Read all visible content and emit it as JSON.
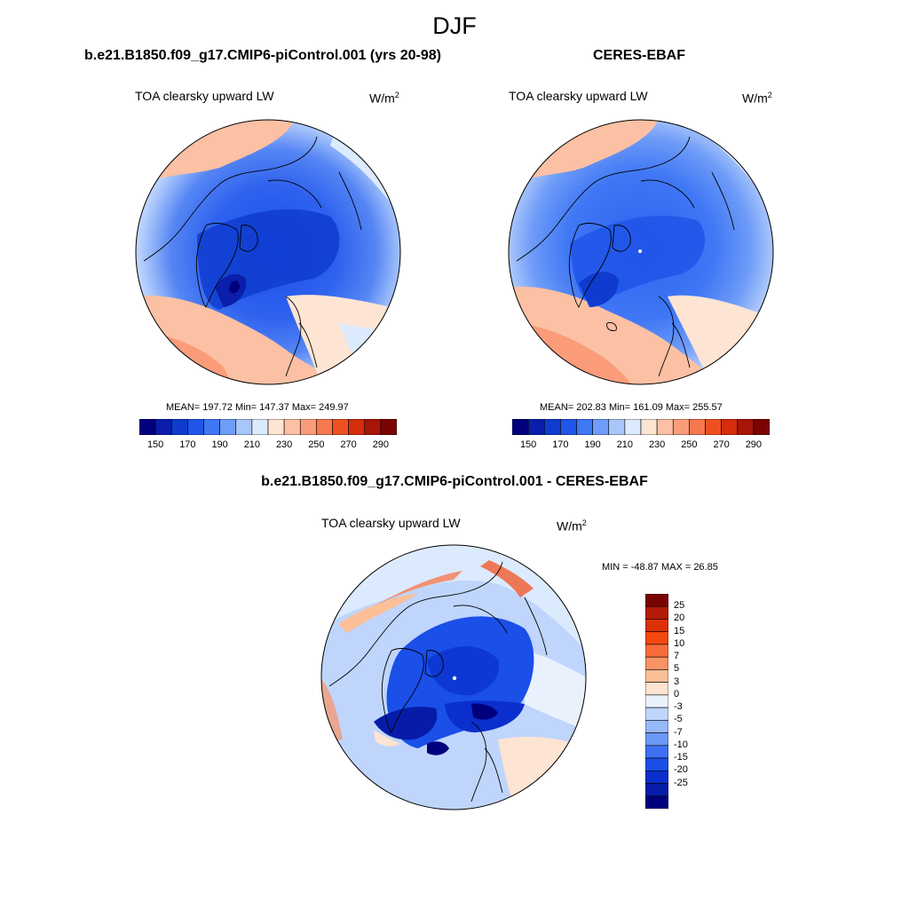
{
  "figure": {
    "title": "DJF"
  },
  "panels": [
    {
      "id": "model",
      "case_title": "b.e21.B1850.f09_g17.CMIP6-piControl.001 (yrs 20-98)",
      "variable": "TOA clearsky upward LW",
      "units_base": "W/m",
      "units_exp": "2",
      "stats": "MEAN= 197.72  Min= 147.37  Max= 249.97",
      "colorbar": {
        "colors": [
          "#00007d",
          "#0a1eaa",
          "#0f3ccf",
          "#1f55e8",
          "#3f77f5",
          "#6f9cf8",
          "#a9c6fb",
          "#dceafd",
          "#fde4d3",
          "#fcc0a4",
          "#fa9c79",
          "#f6784e",
          "#ef5021",
          "#d52d0d",
          "#a81509",
          "#7a0403"
        ],
        "tick_labels": [
          "150",
          "170",
          "190",
          "210",
          "230",
          "250",
          "270",
          "290"
        ]
      }
    },
    {
      "id": "obs",
      "case_title": "CERES-EBAF",
      "variable": "TOA clearsky upward LW",
      "units_base": "W/m",
      "units_exp": "2",
      "stats": "MEAN= 202.83  Min= 161.09  Max= 255.57",
      "colorbar": {
        "colors": [
          "#00007d",
          "#0a1eaa",
          "#0f3ccf",
          "#1f55e8",
          "#3f77f5",
          "#6f9cf8",
          "#a9c6fb",
          "#dceafd",
          "#fde4d3",
          "#fcc0a4",
          "#fa9c79",
          "#f6784e",
          "#ef5021",
          "#d52d0d",
          "#a81509",
          "#7a0403"
        ],
        "tick_labels": [
          "150",
          "170",
          "190",
          "210",
          "230",
          "250",
          "270",
          "290"
        ]
      }
    },
    {
      "id": "diff",
      "case_title": "b.e21.B1850.f09_g17.CMIP6-piControl.001 - CERES-EBAF",
      "variable": "TOA clearsky upward LW",
      "units_base": "W/m",
      "units_exp": "2",
      "stats": "MIN = -48.87 MAX =  26.85",
      "colorbar": {
        "colors_top_to_bottom": [
          "#7a0403",
          "#b21c07",
          "#dc3008",
          "#f4470f",
          "#f86c3a",
          "#fa9363",
          "#fcbf97",
          "#fde4d3",
          "#eaf1fd",
          "#bfd5fb",
          "#97b8f9",
          "#6b98f6",
          "#3e70f2",
          "#1a4fe8",
          "#0a2fcc",
          "#061ca8",
          "#00007d"
        ],
        "tick_labels_top_to_bottom": [
          "25",
          "20",
          "15",
          "10",
          "7",
          "5",
          "3",
          "0",
          "-3",
          "-5",
          "-7",
          "-10",
          "-15",
          "-20",
          "-25"
        ]
      }
    }
  ]
}
